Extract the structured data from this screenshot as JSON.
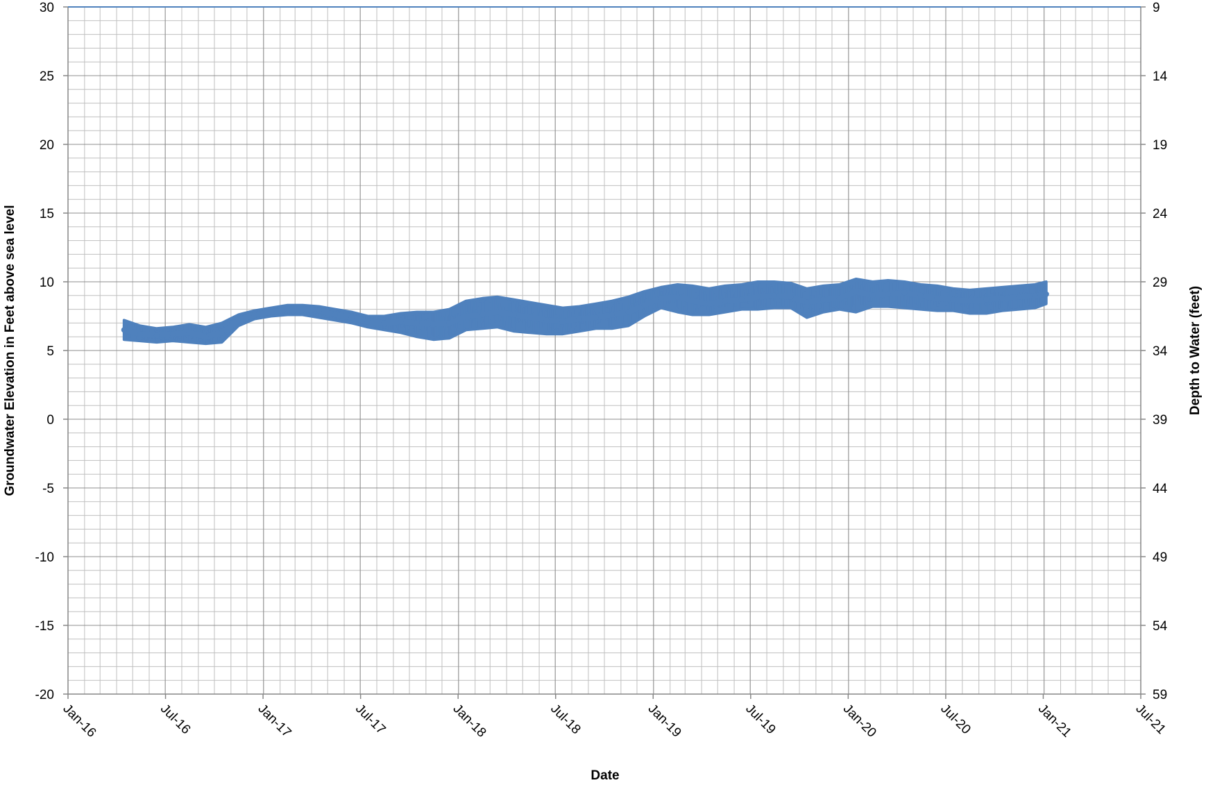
{
  "chart_data": {
    "type": "line",
    "title": "",
    "xlabel": "Date",
    "ylabel": "Groundwater Elevation in Feet above sea level",
    "y2label": "Depth to Water (feet)",
    "x_tick_labels": [
      "Jan-16",
      "Jul-16",
      "Jan-17",
      "Jul-17",
      "Jan-18",
      "Jul-18",
      "Jan-19",
      "Jul-19",
      "Jan-20",
      "Jul-20",
      "Jan-21",
      "Jul-21"
    ],
    "xlim": [
      "2016-01-01",
      "2021-07-01"
    ],
    "ylim": [
      -20,
      30
    ],
    "y_ticks": [
      30,
      25,
      20,
      15,
      10,
      5,
      0,
      -5,
      -10,
      -15,
      -20
    ],
    "y2lim": [
      59,
      9
    ],
    "y2_ticks": [
      9,
      14,
      19,
      24,
      29,
      34,
      39,
      44,
      49,
      54,
      59
    ],
    "grid": true,
    "line_color": "#4F81BD",
    "series": [
      {
        "x": [
          "2016-04-15",
          "2016-05-15",
          "2016-06-15",
          "2016-07-15",
          "2016-08-15",
          "2016-09-15",
          "2016-10-15",
          "2016-11-15",
          "2016-12-15",
          "2017-01-15",
          "2017-02-15",
          "2017-03-15",
          "2017-04-15",
          "2017-05-15",
          "2017-06-15",
          "2017-07-15",
          "2017-08-15",
          "2017-09-15",
          "2017-10-15",
          "2017-11-15",
          "2017-12-15",
          "2018-01-15",
          "2018-02-15",
          "2018-03-15",
          "2018-04-15",
          "2018-05-15",
          "2018-06-15",
          "2018-07-15",
          "2018-08-15",
          "2018-09-15",
          "2018-10-15",
          "2018-11-15",
          "2018-12-15",
          "2019-01-15",
          "2019-02-15",
          "2019-03-15",
          "2019-04-15",
          "2019-05-15",
          "2019-06-15",
          "2019-07-15",
          "2019-08-15",
          "2019-09-15",
          "2019-10-15",
          "2019-11-15",
          "2019-12-15",
          "2020-01-15",
          "2020-02-15",
          "2020-03-15",
          "2020-04-15",
          "2020-05-15",
          "2020-06-15",
          "2020-07-15",
          "2020-08-15",
          "2020-09-15",
          "2020-10-15",
          "2020-11-15",
          "2020-12-15",
          "2021-01-05"
        ],
        "values": [
          6.5,
          6.2,
          6.1,
          6.2,
          6.3,
          6.0,
          6.3,
          7.2,
          7.6,
          7.8,
          8.0,
          8.0,
          7.9,
          7.6,
          7.4,
          7.1,
          7.0,
          7.1,
          7.0,
          6.9,
          7.0,
          7.5,
          7.6,
          7.8,
          7.6,
          7.4,
          7.2,
          7.1,
          7.3,
          7.4,
          7.6,
          7.8,
          8.3,
          8.8,
          8.9,
          8.6,
          8.4,
          8.6,
          8.7,
          8.9,
          9.0,
          8.9,
          8.5,
          8.7,
          8.8,
          9.3,
          9.0,
          9.1,
          9.2,
          9.0,
          8.8,
          8.7,
          8.6,
          8.7,
          8.8,
          8.9,
          9.0,
          9.1
        ],
        "min": [
          5.8,
          5.7,
          5.6,
          5.7,
          5.6,
          5.5,
          5.6,
          6.8,
          7.3,
          7.5,
          7.6,
          7.6,
          7.4,
          7.2,
          7.0,
          6.7,
          6.5,
          6.3,
          6.0,
          5.8,
          5.9,
          6.5,
          6.6,
          6.7,
          6.4,
          6.3,
          6.2,
          6.2,
          6.4,
          6.6,
          6.6,
          6.8,
          7.5,
          8.1,
          7.8,
          7.6,
          7.6,
          7.8,
          8.0,
          8.0,
          8.1,
          8.1,
          7.4,
          7.8,
          8.0,
          7.8,
          8.2,
          8.2,
          8.1,
          8.0,
          7.9,
          7.9,
          7.7,
          7.7,
          7.9,
          8.0,
          8.1,
          8.4
        ],
        "max": [
          7.2,
          6.8,
          6.6,
          6.7,
          6.9,
          6.7,
          7.0,
          7.6,
          7.9,
          8.1,
          8.3,
          8.3,
          8.2,
          8.0,
          7.8,
          7.5,
          7.5,
          7.7,
          7.8,
          7.8,
          8.0,
          8.6,
          8.8,
          8.9,
          8.7,
          8.5,
          8.3,
          8.1,
          8.2,
          8.4,
          8.6,
          8.9,
          9.3,
          9.6,
          9.8,
          9.7,
          9.5,
          9.7,
          9.8,
          10.0,
          10.0,
          9.9,
          9.5,
          9.7,
          9.8,
          10.2,
          10.0,
          10.1,
          10.0,
          9.8,
          9.7,
          9.5,
          9.4,
          9.5,
          9.6,
          9.7,
          9.8,
          10.0
        ]
      }
    ]
  }
}
